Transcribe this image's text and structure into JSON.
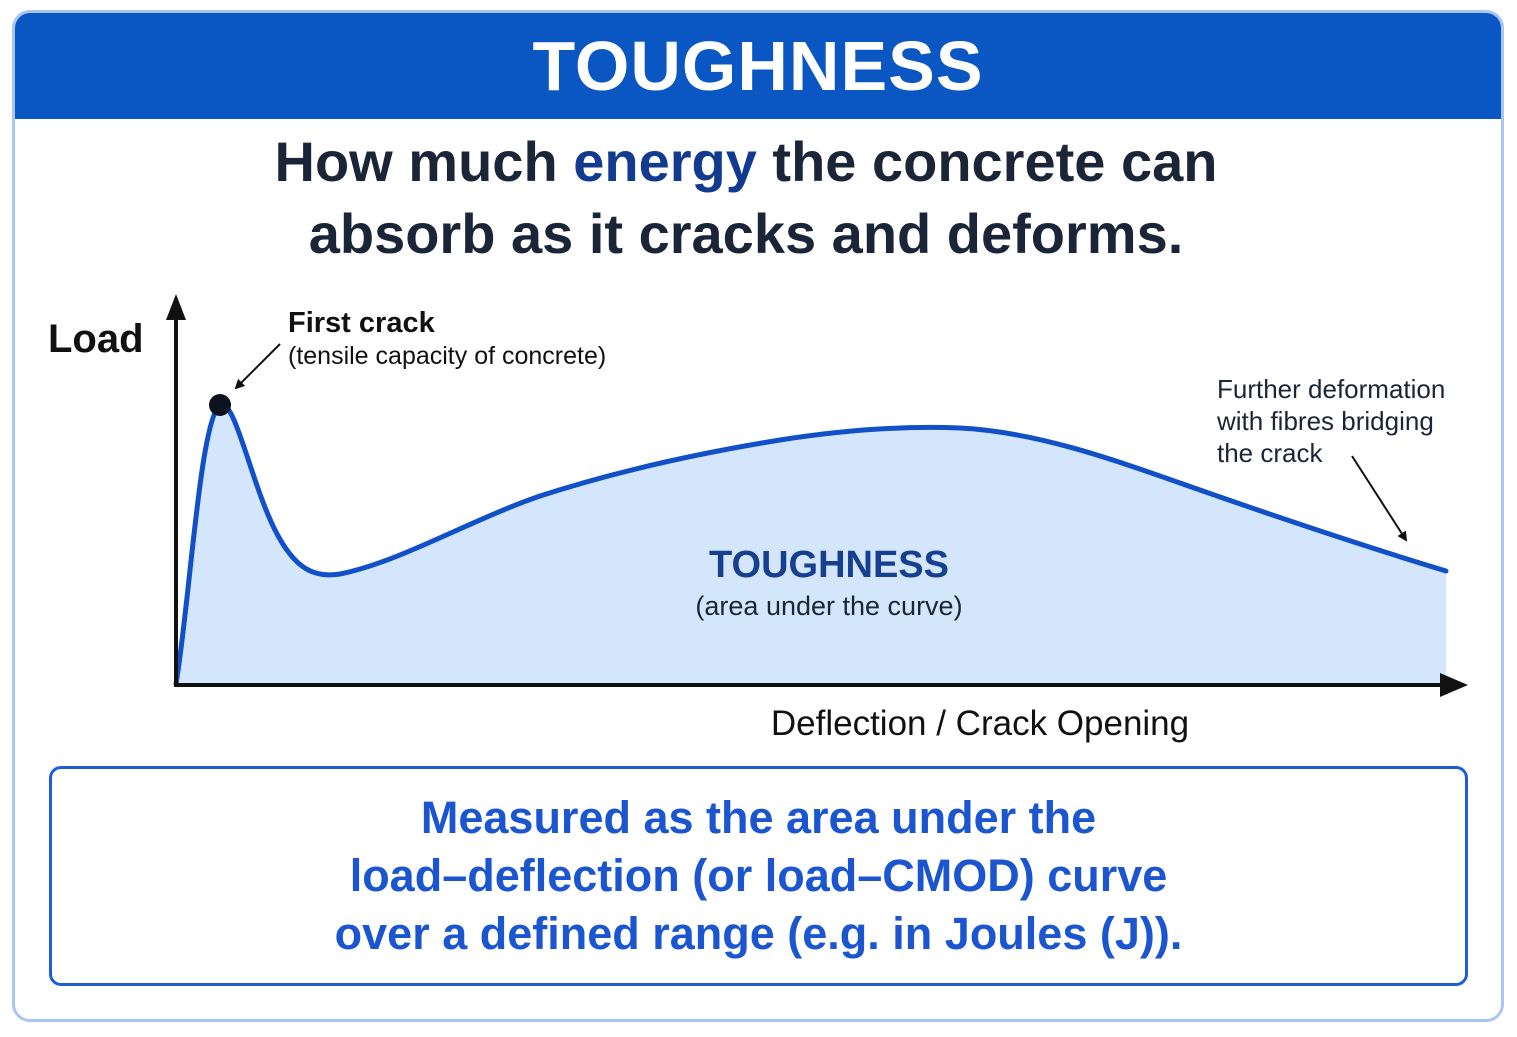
{
  "banner": {
    "title": "TOUGHNESS"
  },
  "headline": {
    "line1_pre": "How much ",
    "line1_accent": "energy",
    "line1_post": " the concrete can",
    "line2": "absorb as it cracks and deforms."
  },
  "diagram": {
    "y_axis_label": "Load",
    "x_axis_label": "Deflection / Crack Opening",
    "first_crack": {
      "title": "First crack",
      "subtitle": "(tensile capacity of concrete)"
    },
    "further": {
      "line1": "Further deformation",
      "line2": "with fibres bridging",
      "line3": "the crack"
    },
    "area_label": {
      "title": "TOUGHNESS",
      "subtitle": "(area under the curve)"
    }
  },
  "note": {
    "line1": "Measured as the area under the",
    "line2": "load–deflection (or load–CMOD) curve",
    "line3": "over a defined range (e.g. in Joules (J))."
  },
  "colors": {
    "banner": "#0a56c2",
    "curve": "#1250c8",
    "area_fill": "#d3e6fb",
    "headline_text": "#1b2538",
    "headline_accent": "#123a8f",
    "note_text": "#1b55d0",
    "note_border": "#1d5ed6",
    "card_border": "#a9c6f2"
  }
}
